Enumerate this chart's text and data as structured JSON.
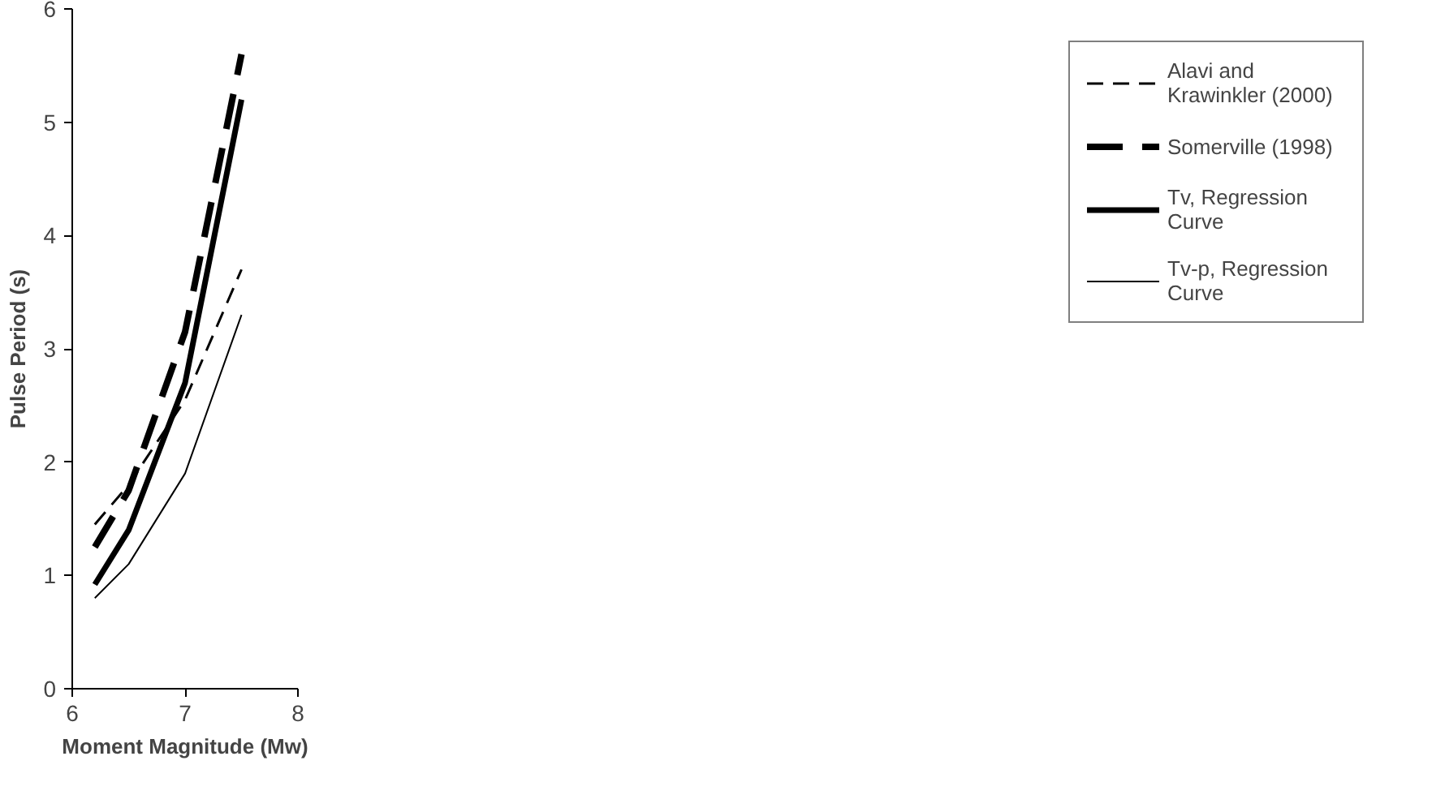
{
  "chart_data": {
    "type": "line",
    "xlabel": "Moment Magnitude (Mw)",
    "ylabel": "Pulse Period (s)",
    "x": [
      6.2,
      6.5,
      7.0,
      7.5
    ],
    "series": [
      {
        "name": "Alavi and Krawinkler (2000)",
        "color": "#000000",
        "values": [
          1.45,
          1.8,
          2.55,
          3.7
        ],
        "line_style": "dashed"
      },
      {
        "name": "Somerville (1998)",
        "color": "#000000",
        "values": [
          1.25,
          1.75,
          3.15,
          5.6
        ],
        "line_style": "dashed"
      },
      {
        "name": "Tv, Regression Curve",
        "color": "#000000",
        "values": [
          0.92,
          1.4,
          2.7,
          5.2
        ],
        "line_style": "solid"
      },
      {
        "name": "Tv-p, Regression Curve",
        "color": "#000000",
        "values": [
          0.8,
          1.1,
          1.9,
          3.3
        ],
        "line_style": "solid"
      }
    ],
    "xlim": [
      6,
      8
    ],
    "xticks": [
      6,
      7,
      8
    ],
    "ylim": [
      0,
      6
    ],
    "yticks": [
      0,
      1,
      2,
      3,
      4,
      5,
      6
    ],
    "grid": false,
    "legend": "right",
    "marker": "none"
  }
}
